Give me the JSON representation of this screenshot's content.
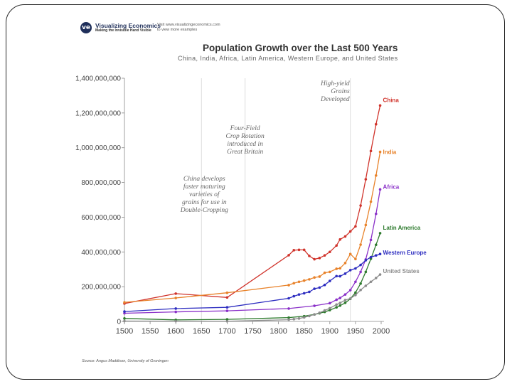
{
  "header": {
    "brand": "Visualizing Economics",
    "tagline": "Making the Invisible Hand Visible",
    "visit_line1": "Visit www.visualizingeconomics.com",
    "visit_line2": "to view more examples"
  },
  "chart_data": {
    "type": "line",
    "title": "Population Growth over the Last 500 Years",
    "subtitle": "China, India, Africa, Latin America, Western Europe, and United States",
    "source": "Source: Angus Maddison, University of Groningen",
    "xlabel": "",
    "ylabel": "",
    "xlim": [
      1500,
      2000
    ],
    "ylim": [
      0,
      1400000000
    ],
    "grid": false,
    "x_ticks": [
      1500,
      1550,
      1600,
      1650,
      1700,
      1750,
      1800,
      1850,
      1900,
      1950,
      2000
    ],
    "y_ticks": [
      {
        "value": 0,
        "label": "0"
      },
      {
        "value": 200000000,
        "label": "200,000,000"
      },
      {
        "value": 400000000,
        "label": "400,000,000"
      },
      {
        "value": 600000000,
        "label": "600,000,000"
      },
      {
        "value": 800000000,
        "label": "800,000,000"
      },
      {
        "value": 1000000000,
        "label": "1,000,000,000"
      },
      {
        "value": 1200000000,
        "label": "1,200,000,000"
      },
      {
        "value": 1400000000,
        "label": "1,400,000,000"
      }
    ],
    "series": [
      {
        "name": "China",
        "color": "#d0332b",
        "points": [
          [
            1500,
            103000000
          ],
          [
            1600,
            160000000
          ],
          [
            1700,
            138000000
          ],
          [
            1820,
            381000000
          ],
          [
            1830,
            410000000
          ],
          [
            1840,
            412000000
          ],
          [
            1850,
            412000000
          ],
          [
            1860,
            377000000
          ],
          [
            1870,
            358000000
          ],
          [
            1880,
            365000000
          ],
          [
            1890,
            380000000
          ],
          [
            1900,
            400000000
          ],
          [
            1913,
            437000000
          ],
          [
            1920,
            472000000
          ],
          [
            1930,
            489000000
          ],
          [
            1940,
            518000000
          ],
          [
            1950,
            547000000
          ],
          [
            1960,
            667000000
          ],
          [
            1970,
            818000000
          ],
          [
            1980,
            981000000
          ],
          [
            1990,
            1135000000
          ],
          [
            1998,
            1243000000
          ]
        ]
      },
      {
        "name": "India",
        "color": "#e8822a",
        "points": [
          [
            1500,
            110000000
          ],
          [
            1600,
            135000000
          ],
          [
            1700,
            165000000
          ],
          [
            1820,
            209000000
          ],
          [
            1830,
            220000000
          ],
          [
            1840,
            228000000
          ],
          [
            1850,
            235000000
          ],
          [
            1860,
            242000000
          ],
          [
            1870,
            253000000
          ],
          [
            1880,
            258000000
          ],
          [
            1890,
            280000000
          ],
          [
            1900,
            285000000
          ],
          [
            1913,
            303000000
          ],
          [
            1920,
            306000000
          ],
          [
            1930,
            336000000
          ],
          [
            1940,
            388000000
          ],
          [
            1950,
            359000000
          ],
          [
            1960,
            442000000
          ],
          [
            1970,
            555000000
          ],
          [
            1980,
            689000000
          ],
          [
            1990,
            840000000
          ],
          [
            1998,
            976000000
          ]
        ]
      },
      {
        "name": "Africa",
        "color": "#8a30c8",
        "points": [
          [
            1500,
            47000000
          ],
          [
            1600,
            55000000
          ],
          [
            1700,
            61000000
          ],
          [
            1820,
            74000000
          ],
          [
            1870,
            90000000
          ],
          [
            1900,
            105000000
          ],
          [
            1913,
            125000000
          ],
          [
            1920,
            135000000
          ],
          [
            1930,
            155000000
          ],
          [
            1940,
            180000000
          ],
          [
            1950,
            228000000
          ],
          [
            1960,
            285000000
          ],
          [
            1970,
            357000000
          ],
          [
            1980,
            469000000
          ],
          [
            1990,
            619000000
          ],
          [
            1998,
            760000000
          ]
        ]
      },
      {
        "name": "Latin America",
        "color": "#2d7a2d",
        "points": [
          [
            1500,
            17000000
          ],
          [
            1600,
            9000000
          ],
          [
            1700,
            12000000
          ],
          [
            1820,
            22000000
          ],
          [
            1850,
            30000000
          ],
          [
            1870,
            40000000
          ],
          [
            1880,
            47000000
          ],
          [
            1890,
            55000000
          ],
          [
            1900,
            65000000
          ],
          [
            1913,
            81000000
          ],
          [
            1920,
            91000000
          ],
          [
            1930,
            107000000
          ],
          [
            1940,
            130000000
          ],
          [
            1950,
            166000000
          ],
          [
            1960,
            218000000
          ],
          [
            1970,
            285000000
          ],
          [
            1980,
            361000000
          ],
          [
            1990,
            441000000
          ],
          [
            1998,
            508000000
          ]
        ]
      },
      {
        "name": "Western Europe",
        "color": "#2c2cc0",
        "points": [
          [
            1500,
            57000000
          ],
          [
            1600,
            74000000
          ],
          [
            1700,
            81000000
          ],
          [
            1820,
            133000000
          ],
          [
            1830,
            145000000
          ],
          [
            1840,
            155000000
          ],
          [
            1850,
            162000000
          ],
          [
            1860,
            170000000
          ],
          [
            1870,
            188000000
          ],
          [
            1880,
            195000000
          ],
          [
            1890,
            210000000
          ],
          [
            1900,
            233000000
          ],
          [
            1913,
            261000000
          ],
          [
            1920,
            260000000
          ],
          [
            1930,
            275000000
          ],
          [
            1940,
            295000000
          ],
          [
            1950,
            305000000
          ],
          [
            1960,
            325000000
          ],
          [
            1970,
            352000000
          ],
          [
            1980,
            370000000
          ],
          [
            1990,
            380000000
          ],
          [
            1998,
            388000000
          ]
        ]
      },
      {
        "name": "United States",
        "color": "#8c8c8c",
        "points": [
          [
            1500,
            2000000
          ],
          [
            1600,
            1500000
          ],
          [
            1700,
            1000000
          ],
          [
            1820,
            10000000
          ],
          [
            1830,
            13000000
          ],
          [
            1840,
            17000000
          ],
          [
            1850,
            23000000
          ],
          [
            1860,
            31000000
          ],
          [
            1870,
            40000000
          ],
          [
            1880,
            50000000
          ],
          [
            1890,
            63000000
          ],
          [
            1900,
            76000000
          ],
          [
            1913,
            97000000
          ],
          [
            1920,
            106000000
          ],
          [
            1930,
            123000000
          ],
          [
            1940,
            132000000
          ],
          [
            1950,
            152000000
          ],
          [
            1960,
            181000000
          ],
          [
            1970,
            205000000
          ],
          [
            1980,
            228000000
          ],
          [
            1990,
            250000000
          ],
          [
            1998,
            270000000
          ]
        ]
      }
    ],
    "annotations": [
      {
        "year": 1650,
        "lines": [
          "China develops",
          "faster maturing",
          "varieties of",
          "grains for use in",
          "Double-Cropping"
        ]
      },
      {
        "year": 1735,
        "lines": [
          "Four-Field",
          "Crop Rotation",
          "introduced in",
          "Great Britain"
        ]
      },
      {
        "year": 1940,
        "lines": [
          "High-yield",
          "Grains",
          "Developed"
        ]
      }
    ]
  }
}
